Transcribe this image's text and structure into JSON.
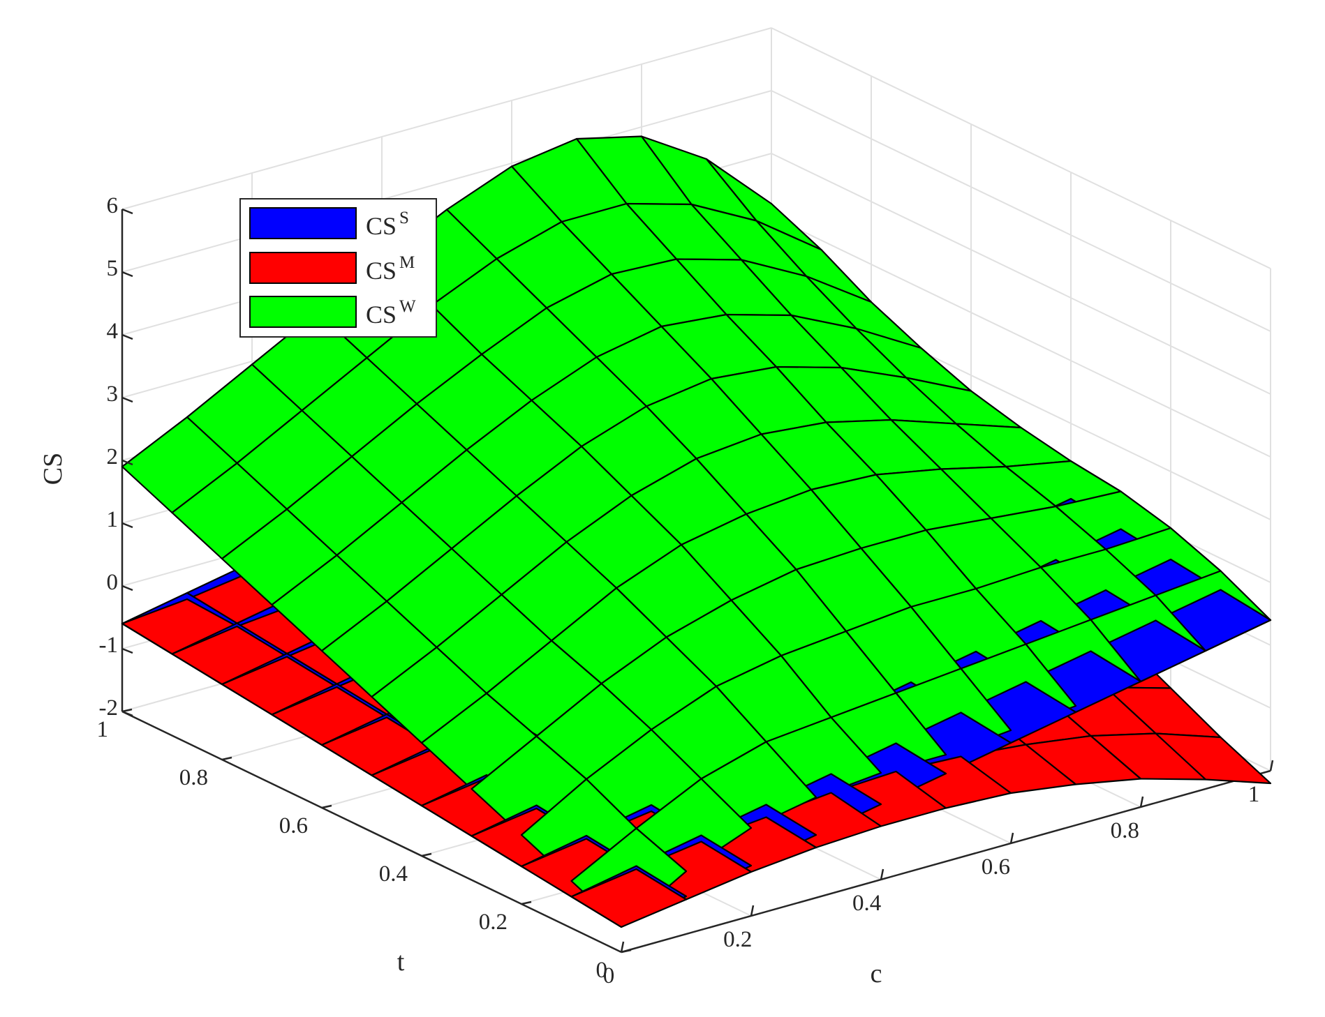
{
  "chart_data": {
    "type": "surface3d",
    "title": "",
    "xlabel": "c",
    "ylabel": "t",
    "zlabel": "CS",
    "xlim": [
      0,
      1
    ],
    "ylim": [
      0,
      1
    ],
    "zlim": [
      -2,
      6
    ],
    "x_ticks": [
      "0",
      "0.2",
      "0.4",
      "0.6",
      "0.8",
      "1"
    ],
    "y_ticks": [
      "0",
      "0.2",
      "0.4",
      "0.6",
      "0.8",
      "1"
    ],
    "z_ticks": [
      "-2",
      "-1",
      "0",
      "1",
      "2",
      "3",
      "4",
      "5",
      "6"
    ],
    "grid": true,
    "legend_position": "top-left",
    "legend": [
      {
        "base": "CS",
        "sup": "S",
        "color": "#0000ff"
      },
      {
        "base": "CS",
        "sup": "M",
        "color": "#ff0000"
      },
      {
        "base": "CS",
        "sup": "W",
        "color": "#00ff00"
      }
    ],
    "x": [
      0,
      0.1,
      0.2,
      0.3,
      0.4,
      0.5,
      0.6,
      0.7,
      0.8,
      0.9,
      1.0
    ],
    "y": [
      0,
      0.1,
      0.2,
      0.3,
      0.4,
      0.5,
      0.6,
      0.7,
      0.8,
      0.9,
      1.0
    ],
    "series": [
      {
        "name": "CS^S",
        "color": "#0000ff",
        "z": [
          [
            -1.6,
            -1.4,
            -1.2,
            -1.0,
            -0.8,
            -0.6,
            -0.4,
            -0.2,
            0.0,
            0.2,
            0.4
          ],
          [
            -1.5,
            -1.3,
            -1.1,
            -0.9,
            -0.7,
            -0.5,
            -0.3,
            -0.1,
            0.1,
            0.3,
            0.5
          ],
          [
            -1.4,
            -1.2,
            -1.0,
            -0.8,
            -0.6,
            -0.4,
            -0.2,
            0.0,
            0.2,
            0.4,
            0.6
          ],
          [
            -1.3,
            -1.1,
            -0.9,
            -0.7,
            -0.5,
            -0.3,
            -0.1,
            0.1,
            0.3,
            0.5,
            0.7
          ],
          [
            -1.2,
            -1.0,
            -0.8,
            -0.6,
            -0.4,
            -0.2,
            0.0,
            0.2,
            0.4,
            0.6,
            0.8
          ],
          [
            -1.1,
            -0.9,
            -0.7,
            -0.5,
            -0.3,
            -0.1,
            0.1,
            0.3,
            0.5,
            0.7,
            0.9
          ],
          [
            -1.0,
            -0.8,
            -0.6,
            -0.4,
            -0.2,
            0.0,
            0.2,
            0.4,
            0.6,
            0.8,
            1.0
          ],
          [
            -0.9,
            -0.7,
            -0.5,
            -0.3,
            -0.1,
            0.1,
            0.3,
            0.5,
            0.7,
            0.9,
            1.1
          ],
          [
            -0.8,
            -0.6,
            -0.4,
            -0.2,
            0.0,
            0.2,
            0.4,
            0.6,
            0.8,
            1.0,
            1.2
          ],
          [
            -0.7,
            -0.5,
            -0.3,
            -0.1,
            0.1,
            0.3,
            0.5,
            0.7,
            0.9,
            1.1,
            1.3
          ],
          [
            -0.6,
            -0.4,
            -0.2,
            0.0,
            0.2,
            0.4,
            0.6,
            0.8,
            1.0,
            1.2,
            1.4
          ]
        ]
      },
      {
        "name": "CS^M",
        "color": "#ff0000",
        "z": [
          [
            -1.6,
            -1.45,
            -1.3,
            -1.2,
            -1.15,
            -1.15,
            -1.2,
            -1.35,
            -1.55,
            -1.85,
            -2.2
          ],
          [
            -1.5,
            -1.35,
            -1.2,
            -1.1,
            -1.0,
            -0.95,
            -1.0,
            -1.1,
            -1.25,
            -1.5,
            -1.85
          ],
          [
            -1.4,
            -1.25,
            -1.1,
            -0.95,
            -0.85,
            -0.8,
            -0.8,
            -0.85,
            -0.95,
            -1.15,
            -1.45
          ],
          [
            -1.3,
            -1.15,
            -1.0,
            -0.85,
            -0.75,
            -0.65,
            -0.6,
            -0.6,
            -0.65,
            -0.8,
            -1.05
          ],
          [
            -1.2,
            -1.05,
            -0.9,
            -0.75,
            -0.6,
            -0.5,
            -0.45,
            -0.4,
            -0.4,
            -0.45,
            -0.6
          ],
          [
            -1.1,
            -0.95,
            -0.8,
            -0.65,
            -0.5,
            -0.4,
            -0.3,
            -0.25,
            -0.2,
            -0.2,
            -0.3
          ],
          [
            -1.0,
            -0.85,
            -0.7,
            -0.55,
            -0.4,
            -0.3,
            -0.2,
            -0.1,
            -0.05,
            0.0,
            -0.05
          ],
          [
            -0.9,
            -0.75,
            -0.6,
            -0.45,
            -0.35,
            -0.2,
            -0.1,
            0.0,
            0.05,
            0.1,
            0.1
          ],
          [
            -0.8,
            -0.65,
            -0.5,
            -0.4,
            -0.25,
            -0.15,
            -0.05,
            0.05,
            0.1,
            0.15,
            0.2
          ],
          [
            -0.7,
            -0.55,
            -0.45,
            -0.3,
            -0.2,
            -0.1,
            0.0,
            0.05,
            0.15,
            0.2,
            0.25
          ],
          [
            -0.6,
            -0.5,
            -0.35,
            -0.25,
            -0.15,
            -0.05,
            0.0,
            0.1,
            0.15,
            0.2,
            0.25
          ]
        ]
      },
      {
        "name": "CS^W",
        "color": "#00ff00",
        "z": [
          [
            -1.6,
            -1.0,
            -0.6,
            -0.4,
            -0.3,
            -0.3,
            -0.2,
            -0.1,
            0.0,
            0.2,
            0.4
          ],
          [
            -1.25,
            -0.7,
            -0.2,
            0.1,
            0.2,
            0.3,
            0.4,
            0.5,
            0.6,
            0.7,
            0.8
          ],
          [
            -0.9,
            -0.3,
            0.2,
            0.6,
            0.8,
            0.9,
            1.0,
            1.0,
            1.05,
            1.05,
            1.1
          ],
          [
            -0.55,
            0.0,
            0.55,
            1.0,
            1.3,
            1.5,
            1.55,
            1.55,
            1.45,
            1.35,
            1.3
          ],
          [
            -0.2,
            0.3,
            0.85,
            1.4,
            1.8,
            2.0,
            2.1,
            2.05,
            1.85,
            1.6,
            1.4
          ],
          [
            0.15,
            0.65,
            1.2,
            1.75,
            2.2,
            2.5,
            2.6,
            2.5,
            2.25,
            1.9,
            1.55
          ],
          [
            0.5,
            1.0,
            1.55,
            2.1,
            2.6,
            2.95,
            3.1,
            3.0,
            2.7,
            2.25,
            1.75
          ],
          [
            0.85,
            1.35,
            1.9,
            2.45,
            2.95,
            3.35,
            3.55,
            3.45,
            3.15,
            2.65,
            2.05
          ],
          [
            1.2,
            1.7,
            2.25,
            2.8,
            3.3,
            3.75,
            4.0,
            3.95,
            3.65,
            3.1,
            2.4
          ],
          [
            1.55,
            2.05,
            2.6,
            3.15,
            3.7,
            4.15,
            4.45,
            4.45,
            4.15,
            3.6,
            2.85
          ],
          [
            1.9,
            2.4,
            2.95,
            3.5,
            4.05,
            4.55,
            4.95,
            5.1,
            4.85,
            4.2,
            3.2
          ]
        ]
      }
    ]
  }
}
